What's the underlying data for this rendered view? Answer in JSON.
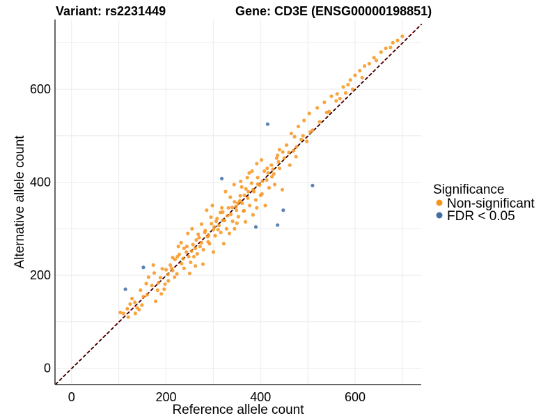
{
  "chart_data": {
    "type": "scatter",
    "title_left": "Variant: rs2231449",
    "title_right": "Gene: CD3E (ENSG00000198851)",
    "xlabel": "Reference allele count",
    "ylabel": "Alternative allele count",
    "xlim": [
      -35,
      740
    ],
    "ylim": [
      -35,
      750
    ],
    "xticks": [
      0,
      200,
      400,
      600
    ],
    "yticks": [
      0,
      200,
      400,
      600
    ],
    "grid": true,
    "legend": {
      "title": "Significance",
      "position": "right",
      "entries": [
        {
          "label": "Non-significant",
          "color": "#F7941D"
        },
        {
          "label": "FDR < 0.05",
          "color": "#3E6FA6"
        }
      ]
    },
    "reference_lines": [
      {
        "style": "dashed",
        "color": "#E8242B",
        "slope": 1.0,
        "intercept": 0
      },
      {
        "style": "dashed",
        "color": "#000000",
        "slope": 1.0,
        "intercept": 0
      }
    ],
    "series": [
      {
        "name": "Non-significant",
        "color": "#F7941D",
        "points": [
          [
            103,
            120
          ],
          [
            110,
            118
          ],
          [
            118,
            128
          ],
          [
            124,
            138
          ],
          [
            128,
            150
          ],
          [
            134,
            142
          ],
          [
            139,
            130
          ],
          [
            143,
            126
          ],
          [
            149,
            136
          ],
          [
            152,
            154
          ],
          [
            158,
            182
          ],
          [
            163,
            196
          ],
          [
            170,
            178
          ],
          [
            175,
            205
          ],
          [
            182,
            168
          ],
          [
            188,
            195
          ],
          [
            192,
            214
          ],
          [
            198,
            181
          ],
          [
            204,
            202
          ],
          [
            209,
            222
          ],
          [
            214,
            210
          ],
          [
            219,
            234
          ],
          [
            223,
            203
          ],
          [
            228,
            245
          ],
          [
            233,
            225
          ],
          [
            238,
            215
          ],
          [
            243,
            250
          ],
          [
            248,
            240
          ],
          [
            252,
            228
          ],
          [
            257,
            266
          ],
          [
            262,
            258
          ],
          [
            266,
            246
          ],
          [
            270,
            281
          ],
          [
            275,
            270
          ],
          [
            279,
            255
          ],
          [
            283,
            296
          ],
          [
            288,
            283
          ],
          [
            292,
            268
          ],
          [
            296,
            311
          ],
          [
            300,
            298
          ],
          [
            304,
            285
          ],
          [
            308,
            322
          ],
          [
            312,
            307
          ],
          [
            316,
            292
          ],
          [
            320,
            336
          ],
          [
            324,
            318
          ],
          [
            328,
            300
          ],
          [
            332,
            345
          ],
          [
            337,
            331
          ],
          [
            341,
            316
          ],
          [
            345,
            358
          ],
          [
            349,
            340
          ],
          [
            353,
            326
          ],
          [
            357,
            371
          ],
          [
            361,
            355
          ],
          [
            365,
            339
          ],
          [
            369,
            386
          ],
          [
            373,
            366
          ],
          [
            377,
            350
          ],
          [
            381,
            398
          ],
          [
            386,
            380
          ],
          [
            390,
            362
          ],
          [
            394,
            410
          ],
          [
            398,
            394
          ],
          [
            403,
            375
          ],
          [
            408,
            424
          ],
          [
            413,
            405
          ],
          [
            418,
            388
          ],
          [
            423,
            437
          ],
          [
            428,
            418
          ],
          [
            434,
            452
          ],
          [
            440,
            430
          ],
          [
            447,
            465
          ],
          [
            455,
            480
          ],
          [
            465,
            505
          ],
          [
            472,
            498
          ],
          [
            480,
            520
          ],
          [
            492,
            533
          ],
          [
            503,
            548
          ],
          [
            520,
            560
          ],
          [
            535,
            572
          ],
          [
            550,
            585
          ],
          [
            562,
            590
          ],
          [
            575,
            605
          ],
          [
            580,
            592
          ],
          [
            590,
            620
          ],
          [
            600,
            630
          ],
          [
            620,
            650
          ],
          [
            640,
            668
          ],
          [
            655,
            680
          ],
          [
            680,
            700
          ],
          [
            700,
            714
          ],
          [
            173,
            222
          ],
          [
            196,
            170
          ],
          [
            214,
            238
          ],
          [
            232,
            270
          ],
          [
            246,
            290
          ],
          [
            255,
            300
          ],
          [
            262,
            220
          ],
          [
            275,
            310
          ],
          [
            286,
            340
          ],
          [
            295,
            325
          ],
          [
            300,
            250
          ],
          [
            315,
            335
          ],
          [
            322,
            268
          ],
          [
            336,
            368
          ],
          [
            345,
            300
          ],
          [
            352,
            355
          ],
          [
            360,
            390
          ],
          [
            368,
            315
          ],
          [
            376,
            420
          ],
          [
            384,
            330
          ],
          [
            392,
            440
          ],
          [
            400,
            372
          ],
          [
            410,
            350
          ],
          [
            430,
            395
          ],
          [
            440,
            470
          ],
          [
            462,
            437
          ],
          [
            475,
            455
          ],
          [
            120,
            110
          ],
          [
            135,
            118
          ],
          [
            146,
            168
          ],
          [
            160,
            158
          ],
          [
            178,
            144
          ],
          [
            190,
            160
          ],
          [
            205,
            188
          ],
          [
            218,
            196
          ],
          [
            226,
            262
          ],
          [
            238,
            258
          ],
          [
            250,
            204
          ],
          [
            259,
            240
          ],
          [
            268,
            288
          ],
          [
            278,
            224
          ],
          [
            289,
            272
          ],
          [
            298,
            350
          ],
          [
            306,
            316
          ],
          [
            318,
            345
          ],
          [
            326,
            380
          ],
          [
            334,
            290
          ],
          [
            344,
            395
          ],
          [
            350,
            312
          ],
          [
            358,
            402
          ],
          [
            364,
            338
          ],
          [
            372,
            410
          ],
          [
            382,
            424
          ],
          [
            392,
            345
          ],
          [
            402,
            448
          ],
          [
            414,
            430
          ],
          [
            424,
            412
          ],
          [
            436,
            458
          ],
          [
            446,
            384
          ],
          [
            470,
            468
          ],
          [
            486,
            492
          ],
          [
            498,
            488
          ],
          [
            510,
            512
          ],
          [
            540,
            550
          ],
          [
            560,
            575
          ],
          [
            585,
            610
          ],
          [
            610,
            640
          ],
          [
            630,
            655
          ],
          [
            665,
            688
          ],
          [
            690,
            705
          ],
          [
            184,
            184
          ],
          [
            200,
            212
          ],
          [
            212,
            215
          ],
          [
            224,
            240
          ],
          [
            236,
            236
          ],
          [
            244,
            262
          ],
          [
            254,
            252
          ],
          [
            264,
            276
          ],
          [
            272,
            262
          ],
          [
            282,
            292
          ],
          [
            290,
            286
          ],
          [
            302,
            304
          ],
          [
            310,
            298
          ],
          [
            320,
            318
          ],
          [
            330,
            328
          ],
          [
            340,
            346
          ],
          [
            348,
            348
          ],
          [
            356,
            360
          ],
          [
            366,
            372
          ],
          [
            374,
            380
          ],
          [
            384,
            384
          ],
          [
            394,
            396
          ],
          [
            404,
            402
          ],
          [
            416,
            420
          ],
          [
            426,
            428
          ],
          [
            438,
            444
          ],
          [
            450,
            452
          ],
          [
            460,
            464
          ],
          [
            476,
            476
          ],
          [
            490,
            500
          ],
          [
            505,
            508
          ],
          [
            525,
            530
          ],
          [
            545,
            552
          ],
          [
            568,
            580
          ],
          [
            595,
            600
          ],
          [
            615,
            625
          ],
          [
            645,
            662
          ],
          [
            675,
            690
          ]
        ]
      },
      {
        "name": "FDR < 0.05",
        "color": "#3E6FA6",
        "points": [
          [
            114,
            170
          ],
          [
            152,
            217
          ],
          [
            318,
            408
          ],
          [
            390,
            304
          ],
          [
            415,
            525
          ],
          [
            436,
            308
          ],
          [
            448,
            340
          ],
          [
            510,
            393
          ]
        ]
      }
    ]
  }
}
